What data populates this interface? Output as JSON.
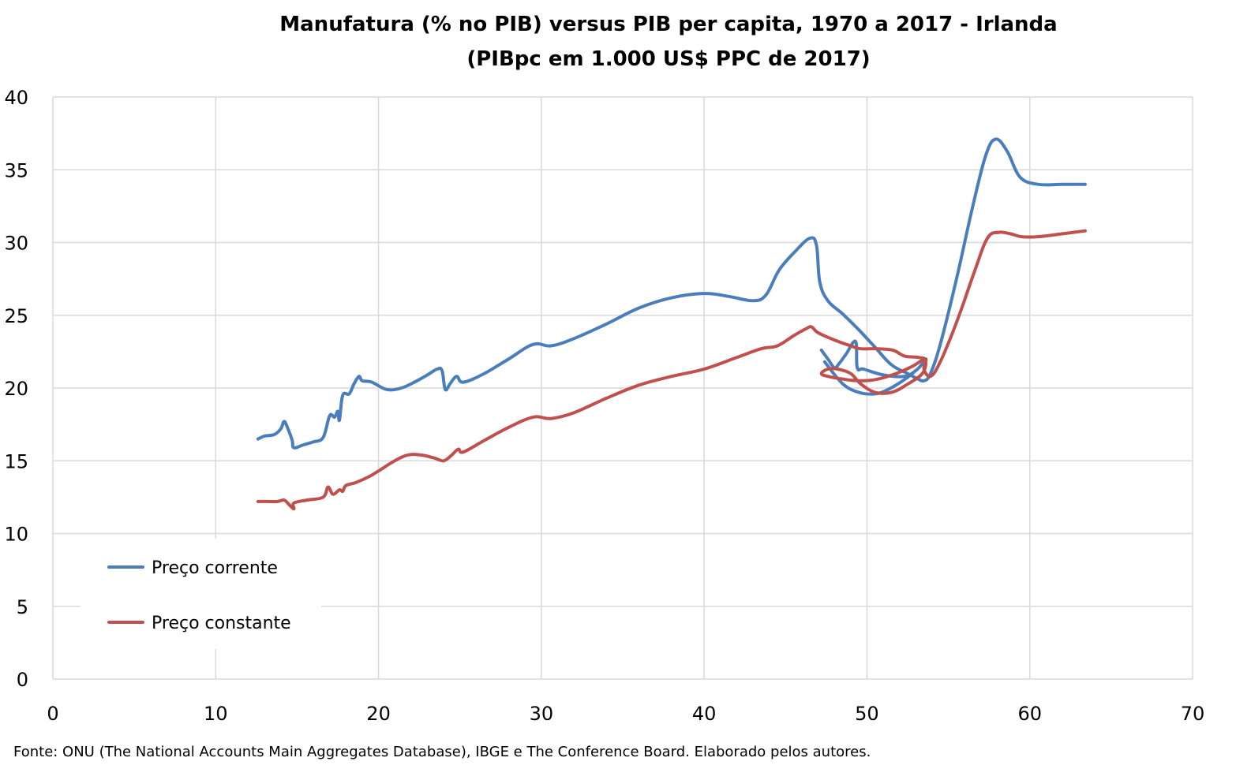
{
  "chart_data": {
    "type": "line",
    "title_line1": "Manufatura (% no PIB) versus PIB per capita, 1970 a 2017 - Irlanda",
    "title_line2": "(PIBpc em 1.000 US$ PPC de 2017)",
    "xlabel": "",
    "ylabel": "",
    "xlim": [
      0,
      70
    ],
    "ylim": [
      0,
      40
    ],
    "xticks": [
      0,
      10,
      20,
      30,
      40,
      50,
      60,
      70
    ],
    "yticks": [
      0,
      5,
      10,
      15,
      20,
      25,
      30,
      35,
      40
    ],
    "grid": true,
    "legend_position": "bottom-left",
    "source": "Fonte: ONU (The National Accounts Main Aggregates Database), IBGE e The Conference Board. Elaborado pelos autores.",
    "series": [
      {
        "name": "Preço corrente",
        "color": "#4a7ebb",
        "points": [
          [
            12.6,
            16.5
          ],
          [
            13.0,
            16.7
          ],
          [
            13.6,
            16.8
          ],
          [
            14.0,
            17.2
          ],
          [
            14.2,
            17.7
          ],
          [
            14.4,
            17.3
          ],
          [
            14.7,
            16.4
          ],
          [
            14.8,
            15.9
          ],
          [
            15.4,
            16.1
          ],
          [
            16.0,
            16.3
          ],
          [
            16.6,
            16.6
          ],
          [
            17.0,
            18.1
          ],
          [
            17.3,
            18.0
          ],
          [
            17.5,
            18.4
          ],
          [
            17.6,
            17.8
          ],
          [
            17.8,
            19.5
          ],
          [
            18.2,
            19.6
          ],
          [
            18.5,
            20.3
          ],
          [
            18.8,
            20.8
          ],
          [
            19.0,
            20.5
          ],
          [
            19.6,
            20.4
          ],
          [
            20.5,
            19.9
          ],
          [
            21.4,
            20.0
          ],
          [
            22.2,
            20.4
          ],
          [
            23.0,
            20.9
          ],
          [
            23.6,
            21.3
          ],
          [
            23.9,
            21.2
          ],
          [
            24.1,
            19.9
          ],
          [
            24.4,
            20.3
          ],
          [
            24.8,
            20.8
          ],
          [
            25.2,
            20.4
          ],
          [
            26.5,
            21.0
          ],
          [
            28.0,
            22.0
          ],
          [
            29.5,
            23.0
          ],
          [
            30.6,
            22.9
          ],
          [
            32.0,
            23.4
          ],
          [
            34.0,
            24.4
          ],
          [
            36.0,
            25.5
          ],
          [
            38.0,
            26.2
          ],
          [
            40.0,
            26.5
          ],
          [
            41.5,
            26.3
          ],
          [
            43.0,
            26.0
          ],
          [
            43.8,
            26.4
          ],
          [
            44.6,
            28.1
          ],
          [
            45.6,
            29.4
          ],
          [
            46.5,
            30.3
          ],
          [
            46.9,
            29.8
          ],
          [
            47.1,
            27.3
          ],
          [
            47.6,
            26.0
          ],
          [
            48.5,
            25.1
          ],
          [
            49.5,
            24.0
          ],
          [
            50.5,
            22.8
          ],
          [
            51.5,
            21.6
          ],
          [
            52.5,
            21.0
          ],
          [
            53.0,
            20.7
          ],
          [
            53.5,
            20.5
          ],
          [
            53.9,
            21.0
          ],
          [
            54.5,
            23.0
          ],
          [
            55.5,
            27.5
          ],
          [
            56.5,
            32.5
          ],
          [
            57.3,
            36.0
          ],
          [
            57.9,
            37.1
          ],
          [
            58.6,
            36.3
          ],
          [
            59.4,
            34.5
          ],
          [
            60.5,
            34.0
          ],
          [
            62.0,
            34.0
          ],
          [
            63.4,
            34.0
          ]
        ],
        "points_2": [
          [
            47.2,
            22.6
          ],
          [
            47.6,
            22.0
          ],
          [
            48.0,
            21.4
          ],
          [
            48.3,
            21.7
          ],
          [
            48.7,
            22.3
          ],
          [
            49.3,
            23.2
          ],
          [
            49.4,
            21.4
          ],
          [
            49.8,
            21.3
          ],
          [
            51.0,
            20.9
          ],
          [
            52.3,
            20.8
          ],
          [
            53.0,
            21.2
          ],
          [
            53.5,
            21.8
          ]
        ],
        "points_3": [
          [
            47.4,
            21.8
          ],
          [
            48.5,
            20.3
          ],
          [
            49.5,
            19.7
          ],
          [
            50.5,
            19.6
          ],
          [
            51.3,
            19.9
          ],
          [
            52.2,
            20.5
          ],
          [
            52.8,
            21.0
          ]
        ]
      },
      {
        "name": "Preço constante",
        "color": "#c0504d",
        "points": [
          [
            12.6,
            12.2
          ],
          [
            13.2,
            12.2
          ],
          [
            13.8,
            12.2
          ],
          [
            14.2,
            12.3
          ],
          [
            14.5,
            12.0
          ],
          [
            14.8,
            11.7
          ],
          [
            14.8,
            12.1
          ],
          [
            15.6,
            12.3
          ],
          [
            16.6,
            12.5
          ],
          [
            16.9,
            13.2
          ],
          [
            17.2,
            12.7
          ],
          [
            17.6,
            13.0
          ],
          [
            17.8,
            12.9
          ],
          [
            18.0,
            13.3
          ],
          [
            18.6,
            13.5
          ],
          [
            19.4,
            13.9
          ],
          [
            20.0,
            14.3
          ],
          [
            21.0,
            15.0
          ],
          [
            21.8,
            15.4
          ],
          [
            22.6,
            15.4
          ],
          [
            23.4,
            15.2
          ],
          [
            24.0,
            15.0
          ],
          [
            24.5,
            15.4
          ],
          [
            24.9,
            15.8
          ],
          [
            25.2,
            15.6
          ],
          [
            26.5,
            16.4
          ],
          [
            28.0,
            17.3
          ],
          [
            29.5,
            18.0
          ],
          [
            30.6,
            17.9
          ],
          [
            32.0,
            18.3
          ],
          [
            34.0,
            19.3
          ],
          [
            36.0,
            20.2
          ],
          [
            38.0,
            20.8
          ],
          [
            40.0,
            21.3
          ],
          [
            42.0,
            22.1
          ],
          [
            43.5,
            22.7
          ],
          [
            44.5,
            22.9
          ],
          [
            45.5,
            23.6
          ],
          [
            46.3,
            24.1
          ],
          [
            46.6,
            24.2
          ],
          [
            47.0,
            23.8
          ],
          [
            48.0,
            23.3
          ],
          [
            49.0,
            22.9
          ],
          [
            49.6,
            22.7
          ],
          [
            50.6,
            22.7
          ],
          [
            51.6,
            22.6
          ],
          [
            52.3,
            22.2
          ],
          [
            53.2,
            22.1
          ],
          [
            53.6,
            21.9
          ],
          [
            53.4,
            21.0
          ],
          [
            52.4,
            20.2
          ],
          [
            51.5,
            19.7
          ],
          [
            50.5,
            19.7
          ],
          [
            49.6,
            20.3
          ],
          [
            49.0,
            21.0
          ],
          [
            48.2,
            21.3
          ],
          [
            47.6,
            21.3
          ],
          [
            47.2,
            21.0
          ],
          [
            47.6,
            20.8
          ],
          [
            48.6,
            20.6
          ],
          [
            49.6,
            20.5
          ],
          [
            50.6,
            20.6
          ],
          [
            51.8,
            21.0
          ],
          [
            52.8,
            21.5
          ],
          [
            53.6,
            22.0
          ],
          [
            53.5,
            21.3
          ],
          [
            53.9,
            20.8
          ],
          [
            54.5,
            21.8
          ],
          [
            55.6,
            24.8
          ],
          [
            56.6,
            28.0
          ],
          [
            57.4,
            30.3
          ],
          [
            58.1,
            30.7
          ],
          [
            58.8,
            30.6
          ],
          [
            59.5,
            30.4
          ],
          [
            60.5,
            30.4
          ],
          [
            62.0,
            30.6
          ],
          [
            63.4,
            30.8
          ]
        ]
      }
    ]
  }
}
